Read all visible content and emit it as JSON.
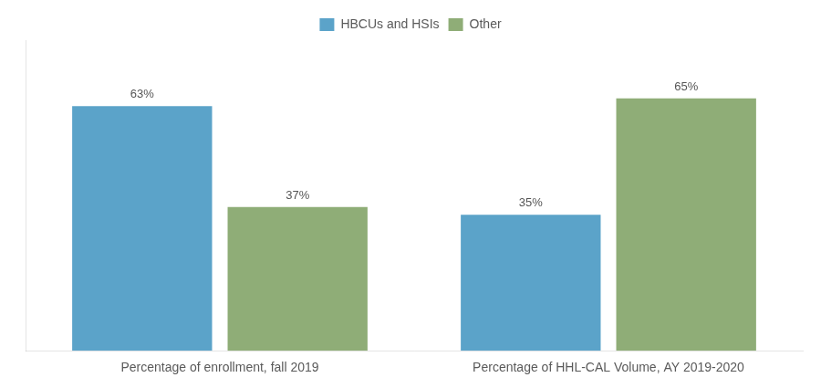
{
  "chart_data": {
    "type": "bar",
    "categories": [
      "Percentage of enrollment, fall 2019",
      "Percentage of HHL-CAL Volume, AY 2019-2020"
    ],
    "series": [
      {
        "name": "HBCUs and HSIs",
        "color": "#5BA3C9",
        "values": [
          63,
          35
        ],
        "value_labels": [
          "63%",
          "35%"
        ]
      },
      {
        "name": "Other",
        "color": "#8FAD77",
        "values": [
          37,
          65
        ],
        "value_labels": [
          "37%",
          "65%"
        ]
      }
    ],
    "ylim": [
      0,
      80
    ],
    "data_labels": true,
    "tick_labels": "x",
    "grid": false,
    "legend": "top"
  }
}
